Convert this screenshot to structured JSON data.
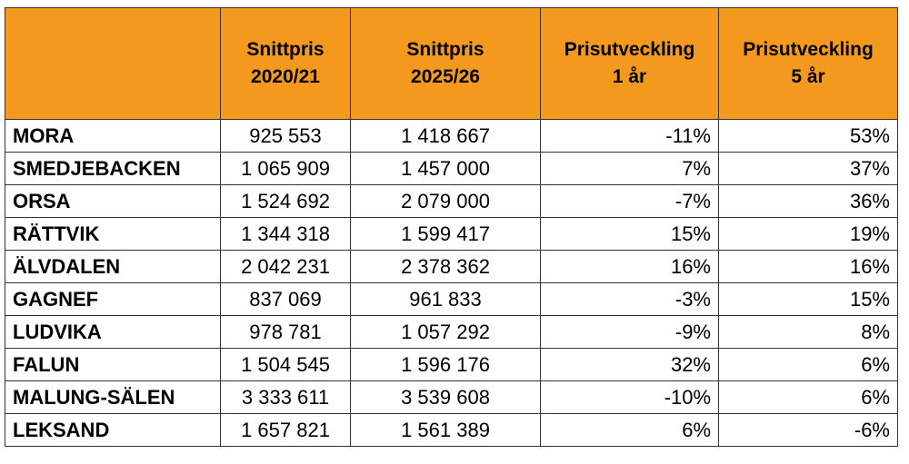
{
  "table": {
    "headers": [
      {
        "line1": "",
        "line2": ""
      },
      {
        "line1": "Snittpris",
        "line2": "2020/21"
      },
      {
        "line1": "Snittpris",
        "line2": "2025/26"
      },
      {
        "line1": "Prisutveckling",
        "line2": "1 år"
      },
      {
        "line1": "Prisutveckling",
        "line2": "5 år"
      }
    ],
    "rows": [
      {
        "name": "MORA",
        "price_2020": "925 553",
        "price_2025": "1 418 667",
        "change_1y": "-11%",
        "change_5y": "53%"
      },
      {
        "name": "SMEDJEBACKEN",
        "price_2020": "1 065 909",
        "price_2025": "1 457 000",
        "change_1y": "7%",
        "change_5y": "37%"
      },
      {
        "name": "ORSA",
        "price_2020": "1 524 692",
        "price_2025": "2 079 000",
        "change_1y": "-7%",
        "change_5y": "36%"
      },
      {
        "name": "RÄTTVIK",
        "price_2020": "1 344 318",
        "price_2025": "1 599 417",
        "change_1y": "15%",
        "change_5y": "19%"
      },
      {
        "name": "ÄLVDALEN",
        "price_2020": "2 042 231",
        "price_2025": "2 378 362",
        "change_1y": "16%",
        "change_5y": "16%"
      },
      {
        "name": "GAGNEF",
        "price_2020": "837 069",
        "price_2025": "961 833",
        "change_1y": "-3%",
        "change_5y": "15%"
      },
      {
        "name": "LUDVIKA",
        "price_2020": "978 781",
        "price_2025": "1 057 292",
        "change_1y": "-9%",
        "change_5y": "8%"
      },
      {
        "name": "FALUN",
        "price_2020": "1 504 545",
        "price_2025": "1 596 176",
        "change_1y": "32%",
        "change_5y": "6%"
      },
      {
        "name": "MALUNG-SÄLEN",
        "price_2020": "3 333 611",
        "price_2025": "3 539 608",
        "change_1y": "-10%",
        "change_5y": "6%"
      },
      {
        "name": "LEKSAND",
        "price_2020": "1 657 821",
        "price_2025": "1 561 389",
        "change_1y": "6%",
        "change_5y": "-6%"
      }
    ],
    "colors": {
      "header_bg": "#f39a1e",
      "border": "#333333"
    }
  }
}
